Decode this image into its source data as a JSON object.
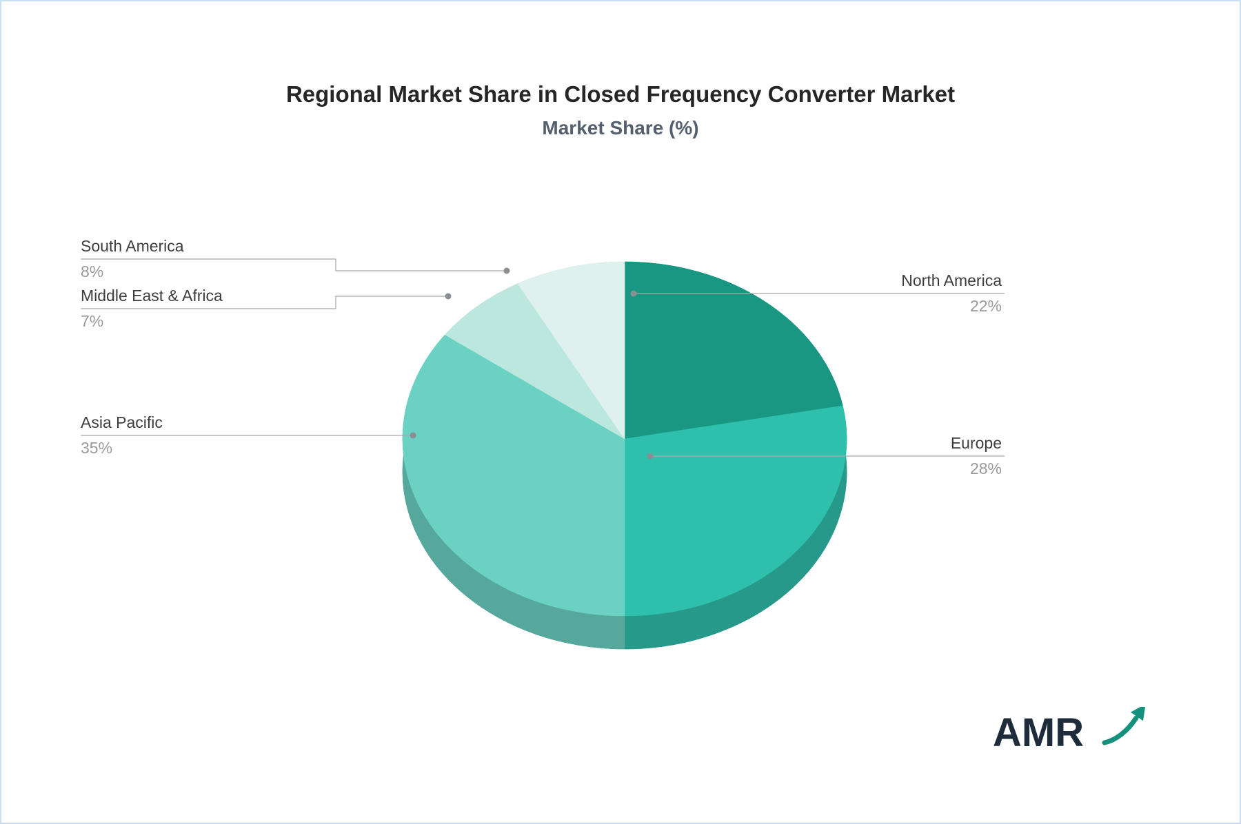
{
  "chart_data": {
    "type": "pie",
    "style": "3d-pie",
    "title": "Regional Market Share in Closed Frequency Converter Market",
    "subtitle": "Market Share (%)",
    "unit": "%",
    "legend": "none",
    "label_style": "callout-lines",
    "start_angle_deg": 0,
    "direction": "clockwise",
    "slices": [
      {
        "label": "North America",
        "value": 22,
        "value_label": "22%",
        "color": "#199782",
        "depth_color": "#137762"
      },
      {
        "label": "Europe",
        "value": 28,
        "value_label": "28%",
        "color": "#2EC0AC",
        "depth_color": "#26998A"
      },
      {
        "label": "Asia Pacific",
        "value": 35,
        "value_label": "35%",
        "color": "#6BD2C3",
        "depth_color": "#55A89B"
      },
      {
        "label": "Middle East & Africa",
        "value": 7,
        "value_label": "7%",
        "color": "#BCE7DF",
        "depth_color": "#96B9B2"
      },
      {
        "label": "South America",
        "value": 8,
        "value_label": "8%",
        "color": "#DFF1ED",
        "depth_color": "#B3C4C0"
      }
    ]
  },
  "branding": {
    "logo_text": "AMR",
    "text_color": "#1d2b3a",
    "arrow_color": "#14917C"
  }
}
